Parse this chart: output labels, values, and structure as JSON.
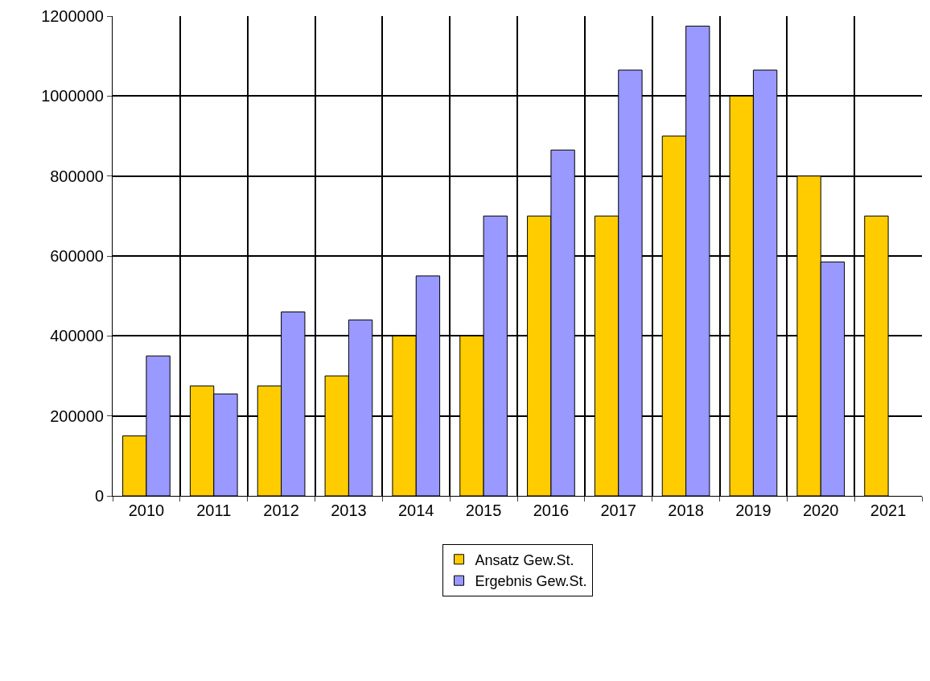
{
  "chart_data": {
    "type": "bar",
    "categories": [
      "2010",
      "2011",
      "2012",
      "2013",
      "2014",
      "2015",
      "2016",
      "2017",
      "2018",
      "2019",
      "2020",
      "2021"
    ],
    "series": [
      {
        "name": "Ansatz Gew.St.",
        "color": "#ffcc00",
        "values": [
          150000,
          275000,
          275000,
          300000,
          400000,
          400000,
          700000,
          700000,
          900000,
          1000000,
          800000,
          700000
        ]
      },
      {
        "name": "Ergebnis Gew.St.",
        "color": "#9999ff",
        "values": [
          350000,
          255000,
          460000,
          440000,
          550000,
          700000,
          865000,
          1065000,
          1175000,
          1065000,
          585000,
          null
        ]
      }
    ],
    "ylim": [
      0,
      1200000
    ],
    "yticks": [
      0,
      200000,
      400000,
      600000,
      800000,
      1000000,
      1200000
    ],
    "grid": true,
    "legend": "bottom"
  }
}
